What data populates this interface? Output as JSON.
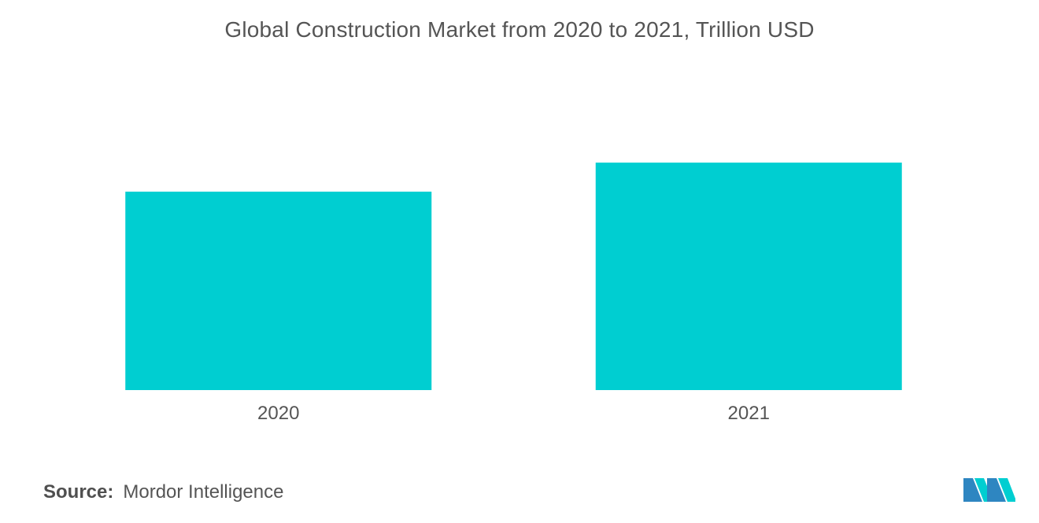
{
  "chart_data": {
    "type": "bar",
    "title": "Global Construction Market from 2020 to 2021, Trillion USD",
    "categories": [
      "2020",
      "2021"
    ],
    "values": [
      11.6,
      13.3
    ],
    "ylim": [
      0,
      16
    ],
    "xlabel": "",
    "ylabel": "",
    "grid": false,
    "bar_color": "#00CED1"
  },
  "source": {
    "label": "Source:",
    "value": "Mordor Intelligence"
  },
  "logo": {
    "icon": "mordor-intelligence-logo",
    "colors": [
      "#2E86C1",
      "#00CED1"
    ]
  }
}
